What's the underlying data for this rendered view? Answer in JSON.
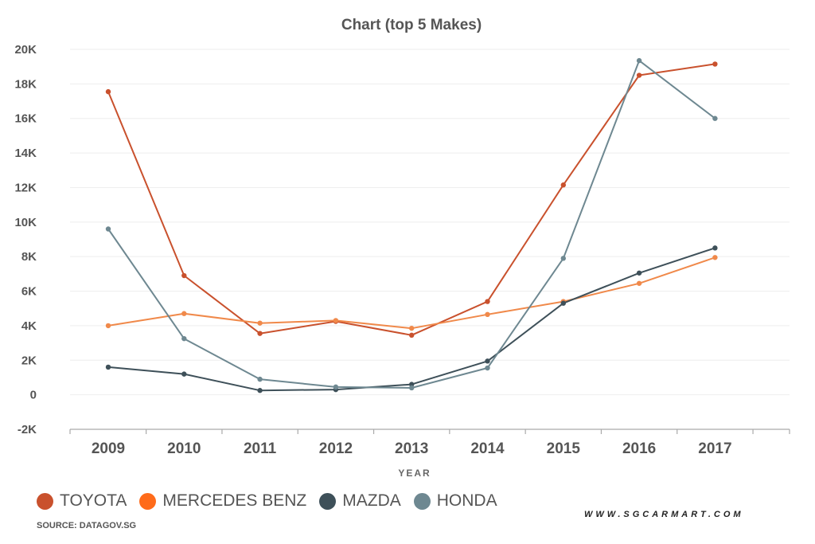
{
  "chart_data": {
    "type": "line",
    "title": "Chart (top 5 Makes)",
    "xlabel": "YEAR",
    "ylabel": "",
    "categories": [
      "2009",
      "2010",
      "2011",
      "2012",
      "2013",
      "2014",
      "2015",
      "2016",
      "2017"
    ],
    "yticks": [
      -2000,
      0,
      2000,
      4000,
      6000,
      8000,
      10000,
      12000,
      14000,
      16000,
      18000,
      20000
    ],
    "ytick_labels": [
      "-2K",
      "0",
      "2K",
      "4K",
      "6K",
      "8K",
      "10K",
      "12K",
      "14K",
      "16K",
      "18K",
      "20K"
    ],
    "ylim": [
      -2000,
      20000
    ],
    "grid": true,
    "legend_position": "bottom-left",
    "series": [
      {
        "name": "TOYOTA",
        "color": "#c9512d",
        "values": [
          17550,
          6900,
          3550,
          4250,
          3450,
          5400,
          12150,
          18500,
          19150
        ]
      },
      {
        "name": "MERCEDES BENZ",
        "color": "#f0894a",
        "values": [
          4000,
          4700,
          4150,
          4300,
          3850,
          4650,
          5400,
          6450,
          7950
        ]
      },
      {
        "name": "MAZDA",
        "color": "#3e5059",
        "values": [
          1600,
          1200,
          250,
          300,
          600,
          1950,
          5300,
          7050,
          8500
        ]
      },
      {
        "name": "HONDA",
        "color": "#6e8891",
        "values": [
          9600,
          3250,
          900,
          450,
          400,
          1550,
          7900,
          19350,
          16000
        ]
      }
    ]
  },
  "legend": {
    "items": [
      {
        "label": "TOYOTA",
        "color": "#c9512d"
      },
      {
        "label": "MERCEDES BENZ",
        "color": "#ff6b1a"
      },
      {
        "label": "MAZDA",
        "color": "#3e5059"
      },
      {
        "label": "HONDA",
        "color": "#6e8891"
      }
    ]
  },
  "footer": {
    "source": "SOURCE: DATAGOV.SG",
    "site": "WWW.SGCARMART.COM"
  }
}
